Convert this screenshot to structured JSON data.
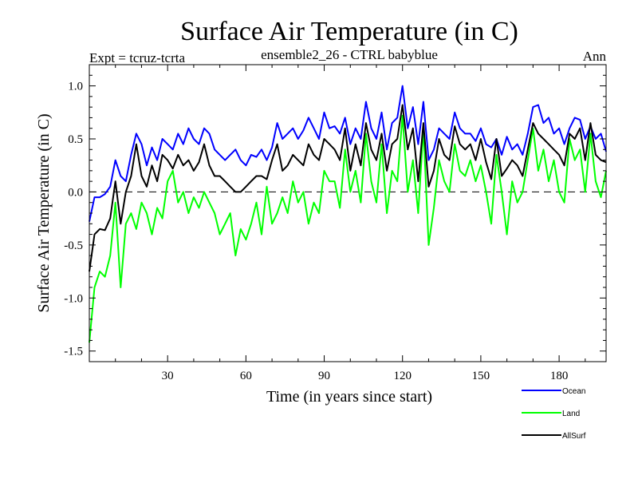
{
  "chart_data": {
    "type": "line",
    "title": "Surface Air Temperature (in C)",
    "subtitle": "ensemble2_26 - CTRL babyblue",
    "left_label": "Expt = tcruz-tcrta",
    "right_label": "Ann",
    "xlabel": "Time (in years since start)",
    "ylabel": "Surface Air Temperature (in C)",
    "xlim": [
      0,
      198
    ],
    "ylim": [
      -1.6,
      1.2
    ],
    "xticks": [
      30,
      60,
      90,
      120,
      150,
      180
    ],
    "yticks": [
      1.0,
      0.5,
      0.0,
      -0.5,
      -1.0,
      -1.5
    ],
    "xtick_labels": [
      "30",
      "60",
      "90",
      "120",
      "150",
      "180"
    ],
    "ytick_labels": [
      "1.0",
      "0.5",
      "0.0",
      "-0.5",
      "-1.0",
      "-1.5"
    ],
    "zero_line": "dashed",
    "legend_position": "bottom-right",
    "series": [
      {
        "name": "Ocean",
        "color": "#0000ff",
        "x": [
          0,
          2,
          4,
          6,
          8,
          10,
          12,
          14,
          16,
          18,
          20,
          22,
          24,
          26,
          28,
          30,
          32,
          34,
          36,
          38,
          40,
          42,
          44,
          46,
          48,
          50,
          52,
          54,
          56,
          58,
          60,
          62,
          64,
          66,
          68,
          70,
          72,
          74,
          76,
          78,
          80,
          82,
          84,
          86,
          88,
          90,
          92,
          94,
          96,
          98,
          100,
          102,
          104,
          106,
          108,
          110,
          112,
          114,
          116,
          118,
          120,
          122,
          124,
          126,
          128,
          130,
          132,
          134,
          136,
          138,
          140,
          142,
          144,
          146,
          148,
          150,
          152,
          154,
          156,
          158,
          160,
          162,
          164,
          166,
          168,
          170,
          172,
          174,
          176,
          178,
          180,
          182,
          184,
          186,
          188,
          190,
          192,
          194,
          196,
          198
        ],
        "values": [
          -0.28,
          -0.05,
          -0.05,
          -0.02,
          0.05,
          0.3,
          0.15,
          0.1,
          0.35,
          0.55,
          0.45,
          0.25,
          0.42,
          0.3,
          0.5,
          0.45,
          0.4,
          0.55,
          0.45,
          0.6,
          0.5,
          0.45,
          0.6,
          0.55,
          0.4,
          0.35,
          0.3,
          0.35,
          0.4,
          0.3,
          0.25,
          0.35,
          0.33,
          0.4,
          0.3,
          0.42,
          0.65,
          0.5,
          0.55,
          0.6,
          0.5,
          0.58,
          0.7,
          0.6,
          0.5,
          0.75,
          0.6,
          0.62,
          0.55,
          0.7,
          0.45,
          0.6,
          0.5,
          0.85,
          0.6,
          0.5,
          0.75,
          0.4,
          0.65,
          0.7,
          1.0,
          0.6,
          0.8,
          0.45,
          0.85,
          0.3,
          0.4,
          0.6,
          0.55,
          0.5,
          0.75,
          0.6,
          0.55,
          0.55,
          0.48,
          0.6,
          0.45,
          0.42,
          0.5,
          0.35,
          0.52,
          0.4,
          0.45,
          0.35,
          0.55,
          0.8,
          0.82,
          0.65,
          0.7,
          0.55,
          0.6,
          0.45,
          0.6,
          0.7,
          0.68,
          0.5,
          0.62,
          0.5,
          0.55,
          0.38
        ]
      },
      {
        "name": "Land",
        "color": "#00ff00",
        "x": [
          0,
          2,
          4,
          6,
          8,
          10,
          12,
          14,
          16,
          18,
          20,
          22,
          24,
          26,
          28,
          30,
          32,
          34,
          36,
          38,
          40,
          42,
          44,
          46,
          48,
          50,
          52,
          54,
          56,
          58,
          60,
          62,
          64,
          66,
          68,
          70,
          72,
          74,
          76,
          78,
          80,
          82,
          84,
          86,
          88,
          90,
          92,
          94,
          96,
          98,
          100,
          102,
          104,
          106,
          108,
          110,
          112,
          114,
          116,
          118,
          120,
          122,
          124,
          126,
          128,
          130,
          132,
          134,
          136,
          138,
          140,
          142,
          144,
          146,
          148,
          150,
          152,
          154,
          156,
          158,
          160,
          162,
          164,
          166,
          168,
          170,
          172,
          174,
          176,
          178,
          180,
          182,
          184,
          186,
          188,
          190,
          192,
          194,
          196,
          198
        ],
        "values": [
          -1.42,
          -0.9,
          -0.75,
          -0.8,
          -0.6,
          -0.1,
          -0.9,
          -0.3,
          -0.2,
          -0.35,
          -0.1,
          -0.2,
          -0.4,
          -0.15,
          -0.25,
          0.1,
          0.2,
          -0.1,
          0.0,
          -0.2,
          -0.05,
          -0.15,
          0.0,
          -0.1,
          -0.2,
          -0.4,
          -0.3,
          -0.2,
          -0.6,
          -0.35,
          -0.45,
          -0.3,
          -0.1,
          -0.4,
          0.05,
          -0.3,
          -0.2,
          -0.05,
          -0.2,
          0.1,
          -0.1,
          0.0,
          -0.3,
          -0.1,
          -0.2,
          0.2,
          0.1,
          0.1,
          -0.15,
          0.4,
          0.0,
          0.2,
          -0.1,
          0.55,
          0.1,
          -0.1,
          0.45,
          -0.2,
          0.2,
          0.1,
          0.72,
          0.0,
          0.3,
          -0.2,
          0.6,
          -0.5,
          -0.15,
          0.3,
          0.1,
          0.0,
          0.45,
          0.2,
          0.15,
          0.3,
          0.1,
          0.25,
          0.0,
          -0.3,
          0.35,
          0.0,
          -0.4,
          0.1,
          -0.1,
          0.0,
          0.3,
          0.6,
          0.2,
          0.4,
          0.1,
          0.3,
          0.0,
          -0.1,
          0.5,
          0.3,
          0.4,
          0.0,
          0.55,
          0.1,
          -0.05,
          0.2
        ]
      },
      {
        "name": "AllSurf",
        "color": "#000000",
        "x": [
          0,
          2,
          4,
          6,
          8,
          10,
          12,
          14,
          16,
          18,
          20,
          22,
          24,
          26,
          28,
          30,
          32,
          34,
          36,
          38,
          40,
          42,
          44,
          46,
          48,
          50,
          52,
          54,
          56,
          58,
          60,
          62,
          64,
          66,
          68,
          70,
          72,
          74,
          76,
          78,
          80,
          82,
          84,
          86,
          88,
          90,
          92,
          94,
          96,
          98,
          100,
          102,
          104,
          106,
          108,
          110,
          112,
          114,
          116,
          118,
          120,
          122,
          124,
          126,
          128,
          130,
          132,
          134,
          136,
          138,
          140,
          142,
          144,
          146,
          148,
          150,
          152,
          154,
          156,
          158,
          160,
          162,
          164,
          166,
          168,
          170,
          172,
          174,
          176,
          178,
          180,
          182,
          184,
          186,
          188,
          190,
          192,
          194,
          196,
          198
        ],
        "values": [
          -0.75,
          -0.4,
          -0.35,
          -0.36,
          -0.25,
          0.1,
          -0.3,
          0.0,
          0.15,
          0.45,
          0.15,
          0.05,
          0.25,
          0.1,
          0.35,
          0.3,
          0.22,
          0.35,
          0.25,
          0.3,
          0.2,
          0.28,
          0.45,
          0.25,
          0.15,
          0.15,
          0.1,
          0.05,
          0.0,
          0.0,
          0.05,
          0.1,
          0.15,
          0.15,
          0.12,
          0.3,
          0.45,
          0.2,
          0.25,
          0.35,
          0.3,
          0.25,
          0.45,
          0.35,
          0.3,
          0.5,
          0.45,
          0.4,
          0.3,
          0.6,
          0.2,
          0.45,
          0.25,
          0.65,
          0.4,
          0.3,
          0.55,
          0.2,
          0.45,
          0.5,
          0.82,
          0.4,
          0.6,
          0.1,
          0.65,
          0.05,
          0.2,
          0.5,
          0.35,
          0.3,
          0.62,
          0.45,
          0.4,
          0.45,
          0.3,
          0.5,
          0.28,
          0.12,
          0.5,
          0.15,
          0.22,
          0.3,
          0.25,
          0.15,
          0.4,
          0.65,
          0.55,
          0.5,
          0.45,
          0.4,
          0.35,
          0.25,
          0.55,
          0.5,
          0.6,
          0.3,
          0.65,
          0.35,
          0.3,
          0.28
        ]
      }
    ]
  }
}
